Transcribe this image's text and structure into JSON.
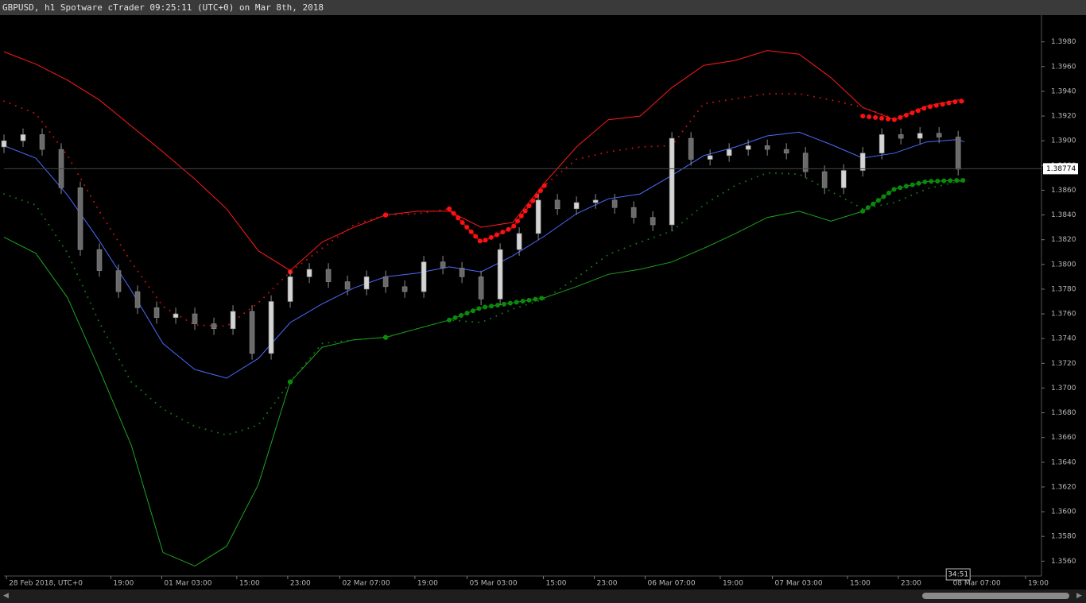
{
  "title": "GBPUSD, h1 Spotware cTrader 09:25:11 (UTC+0) on Mar 8th, 2018",
  "chart_data": {
    "type": "candlestick",
    "up_color": "#d4d4d4",
    "down_color": "#6a6a6a",
    "wick_color": "#8a8a8a",
    "xlim": [
      0,
      163.1
    ],
    "ylim": [
      1.3548,
      1.4001
    ],
    "yticks": [
      {
        "value": 1.356,
        "label": "1.3560"
      },
      {
        "value": 1.358,
        "label": "1.3580"
      },
      {
        "value": 1.36,
        "label": "1.3600"
      },
      {
        "value": 1.362,
        "label": "1.3620"
      },
      {
        "value": 1.364,
        "label": "1.3640"
      },
      {
        "value": 1.366,
        "label": "1.3660"
      },
      {
        "value": 1.368,
        "label": "1.3680"
      },
      {
        "value": 1.37,
        "label": "1.3700"
      },
      {
        "value": 1.372,
        "label": "1.3720"
      },
      {
        "value": 1.374,
        "label": "1.3740"
      },
      {
        "value": 1.376,
        "label": "1.3760"
      },
      {
        "value": 1.378,
        "label": "1.3780"
      },
      {
        "value": 1.38,
        "label": "1.3800"
      },
      {
        "value": 1.382,
        "label": "1.3820"
      },
      {
        "value": 1.384,
        "label": "1.3840"
      },
      {
        "value": 1.386,
        "label": "1.3860"
      },
      {
        "value": 1.388,
        "label": "1.3880"
      },
      {
        "value": 1.39,
        "label": "1.3900"
      },
      {
        "value": 1.392,
        "label": "1.3920"
      },
      {
        "value": 1.394,
        "label": "1.3940"
      },
      {
        "value": 1.396,
        "label": "1.3960"
      },
      {
        "value": 1.398,
        "label": "1.3980"
      }
    ],
    "xticks": [
      {
        "value": 0.4,
        "label": "28 Feb 2018, UTC+0"
      },
      {
        "value": 16.8,
        "label": "19:00"
      },
      {
        "value": 24.8,
        "label": "01 Mar 03:00"
      },
      {
        "value": 36.6,
        "label": "15:00"
      },
      {
        "value": 44.6,
        "label": "23:00"
      },
      {
        "value": 52.8,
        "label": "02 Mar 07:00"
      },
      {
        "value": 64.6,
        "label": "19:00"
      },
      {
        "value": 72.8,
        "label": "05 Mar 03:00"
      },
      {
        "value": 84.8,
        "label": "15:00"
      },
      {
        "value": 92.8,
        "label": "23:00"
      },
      {
        "value": 100.8,
        "label": "06 Mar 07:00"
      },
      {
        "value": 112.6,
        "label": "19:00"
      },
      {
        "value": 120.8,
        "label": "07 Mar 03:00"
      },
      {
        "value": 132.6,
        "label": "15:00"
      },
      {
        "value": 140.6,
        "label": "23:00"
      },
      {
        "value": 148.8,
        "label": "08 Mar 07:00"
      },
      {
        "value": 160.6,
        "label": "19:00"
      }
    ],
    "last_price": 1.38774,
    "countdown": "34:51",
    "x": [
      0,
      3,
      6,
      9,
      12,
      15,
      18,
      21,
      24,
      27,
      30,
      33,
      36,
      39,
      42,
      45,
      48,
      51,
      54,
      57,
      60,
      63,
      66,
      69,
      72,
      75,
      78,
      81,
      84,
      87,
      90,
      93,
      96,
      99,
      102,
      105,
      108,
      111,
      114,
      117,
      120,
      123,
      126,
      129,
      132,
      135,
      138,
      141,
      144,
      147,
      150
    ],
    "open": [
      1.3895,
      1.39,
      1.3905,
      1.3893,
      1.3862,
      1.3812,
      1.3795,
      1.3778,
      1.3765,
      1.3757,
      1.376,
      1.3752,
      1.3748,
      1.3762,
      1.3728,
      1.377,
      1.379,
      1.3796,
      1.3786,
      1.378,
      1.379,
      1.3782,
      1.3778,
      1.3802,
      1.3797,
      1.379,
      1.3772,
      1.3812,
      1.3825,
      1.3852,
      1.3845,
      1.385,
      1.3852,
      1.3846,
      1.3838,
      1.3832,
      1.3902,
      1.3885,
      1.3888,
      1.3893,
      1.3896,
      1.3893,
      1.389,
      1.3875,
      1.3862,
      1.3876,
      1.389,
      1.3905,
      1.3902,
      1.3906,
      1.3903
    ],
    "high": [
      1.3905,
      1.391,
      1.391,
      1.3898,
      1.3867,
      1.3817,
      1.38,
      1.3783,
      1.377,
      1.3765,
      1.3765,
      1.3757,
      1.3767,
      1.3767,
      1.3775,
      1.3795,
      1.3801,
      1.3801,
      1.3791,
      1.3795,
      1.3795,
      1.3787,
      1.3807,
      1.3807,
      1.3802,
      1.3795,
      1.3817,
      1.383,
      1.3857,
      1.3857,
      1.3855,
      1.3857,
      1.3857,
      1.3851,
      1.3843,
      1.3907,
      1.3907,
      1.3893,
      1.3898,
      1.3901,
      1.3901,
      1.3898,
      1.3895,
      1.388,
      1.3881,
      1.3895,
      1.391,
      1.391,
      1.3911,
      1.3911,
      1.3908
    ],
    "low": [
      1.389,
      1.3895,
      1.3888,
      1.3857,
      1.3807,
      1.379,
      1.3773,
      1.376,
      1.3752,
      1.3752,
      1.3747,
      1.3743,
      1.3743,
      1.3723,
      1.3723,
      1.3765,
      1.3785,
      1.3781,
      1.3775,
      1.3775,
      1.3777,
      1.3773,
      1.3773,
      1.3792,
      1.3785,
      1.3767,
      1.3767,
      1.3807,
      1.382,
      1.384,
      1.384,
      1.3845,
      1.3841,
      1.3833,
      1.3827,
      1.3827,
      1.388,
      1.388,
      1.3883,
      1.3888,
      1.3888,
      1.3885,
      1.387,
      1.3857,
      1.3857,
      1.3871,
      1.3885,
      1.3897,
      1.3897,
      1.3898,
      1.3872
    ],
    "close": [
      1.39,
      1.3905,
      1.3893,
      1.3862,
      1.3812,
      1.3795,
      1.3778,
      1.3765,
      1.3757,
      1.376,
      1.3752,
      1.3748,
      1.3762,
      1.3728,
      1.377,
      1.379,
      1.3796,
      1.3786,
      1.378,
      1.379,
      1.3782,
      1.3778,
      1.3802,
      1.3797,
      1.379,
      1.3772,
      1.3812,
      1.3825,
      1.3852,
      1.3845,
      1.385,
      1.3852,
      1.3846,
      1.3838,
      1.3832,
      1.3902,
      1.3885,
      1.3888,
      1.3893,
      1.3896,
      1.3893,
      1.389,
      1.3875,
      1.3862,
      1.3876,
      1.389,
      1.3905,
      1.3902,
      1.3906,
      1.3903,
      1.3877
    ],
    "lines": {
      "x": [
        0,
        5,
        10,
        15,
        20,
        25,
        30,
        35,
        40,
        45,
        50,
        55,
        60,
        65,
        70,
        75,
        80,
        85,
        90,
        95,
        100,
        105,
        110,
        115,
        120,
        125,
        130,
        135,
        140,
        145,
        150,
        151
      ],
      "series": [
        {
          "color": "#ff1a1a",
          "style": "solid",
          "values": [
            1.3972,
            1.3962,
            1.3949,
            1.3933,
            1.3912,
            1.3891,
            1.3869,
            1.3845,
            1.3811,
            1.3795,
            1.3818,
            1.383,
            1.384,
            1.3843,
            1.3843,
            1.383,
            1.3834,
            1.3866,
            1.3895,
            1.3917,
            1.392,
            1.3943,
            1.3961,
            1.3965,
            1.3973,
            1.397,
            1.3951,
            1.3927,
            1.3917,
            1.3928,
            1.3933,
            1.3932
          ]
        },
        {
          "color": "#4a6cff",
          "style": "solid",
          "values": [
            1.3896,
            1.3886,
            1.3856,
            1.3819,
            1.3779,
            1.3736,
            1.3715,
            1.3708,
            1.3724,
            1.3753,
            1.3768,
            1.3781,
            1.379,
            1.3793,
            1.3798,
            1.3794,
            1.3807,
            1.3823,
            1.3841,
            1.3853,
            1.3857,
            1.3872,
            1.3888,
            1.3895,
            1.3904,
            1.3907,
            1.3897,
            1.3886,
            1.389,
            1.3899,
            1.3901,
            1.3899
          ]
        },
        {
          "color": "#1fa31f",
          "style": "solid",
          "values": [
            1.3822,
            1.3809,
            1.3773,
            1.3715,
            1.3654,
            1.3567,
            1.3556,
            1.3572,
            1.3622,
            1.3705,
            1.3733,
            1.3739,
            1.3741,
            1.3748,
            1.3755,
            1.3765,
            1.3769,
            1.3773,
            1.3782,
            1.3792,
            1.3796,
            1.3802,
            1.3813,
            1.3825,
            1.3838,
            1.3843,
            1.3835,
            1.3843,
            1.3861,
            1.3867,
            1.3868,
            1.3868
          ]
        },
        {
          "color": "#d01010",
          "style": "dotted",
          "values": [
            1.3932,
            1.3922,
            1.3888,
            1.3843,
            1.3802,
            1.3766,
            1.3751,
            1.375,
            1.3769,
            1.3794,
            1.3813,
            1.3832,
            1.384,
            1.3841,
            1.3845,
            1.3818,
            1.383,
            1.3864,
            1.3885,
            1.3891,
            1.3895,
            1.3896,
            1.393,
            1.3934,
            1.3938,
            1.3938,
            1.3933,
            1.3927,
            1.3918,
            1.3927,
            1.3932,
            1.3932
          ]
        },
        {
          "color": "#127a12",
          "style": "dotted",
          "values": [
            1.3857,
            1.3848,
            1.3809,
            1.3753,
            1.3705,
            1.3683,
            1.3669,
            1.3662,
            1.367,
            1.3705,
            1.3736,
            1.3739,
            1.3741,
            1.3748,
            1.3755,
            1.3753,
            1.3764,
            1.3772,
            1.3789,
            1.3808,
            1.3818,
            1.3827,
            1.3848,
            1.3864,
            1.3874,
            1.3873,
            1.3859,
            1.3845,
            1.385,
            1.3861,
            1.3867,
            1.3867
          ]
        },
        {
          "color": "#ff1010",
          "style": "dots",
          "values": [
            null,
            null,
            null,
            null,
            null,
            null,
            null,
            null,
            null,
            1.3794,
            null,
            null,
            1.384,
            null,
            1.3845,
            1.3818,
            1.383,
            1.3864,
            null,
            null,
            null,
            null,
            null,
            null,
            null,
            null,
            null,
            1.392,
            1.3917,
            1.3927,
            1.3932,
            1.3932
          ]
        },
        {
          "color": "#0a8a0a",
          "style": "dots",
          "values": [
            null,
            null,
            null,
            null,
            null,
            null,
            null,
            null,
            null,
            1.3705,
            null,
            null,
            1.3741,
            null,
            1.3755,
            1.3765,
            1.3769,
            1.3773,
            null,
            null,
            null,
            null,
            null,
            null,
            null,
            null,
            null,
            1.3843,
            1.3861,
            1.3867,
            1.3868,
            1.3868
          ]
        }
      ]
    }
  }
}
